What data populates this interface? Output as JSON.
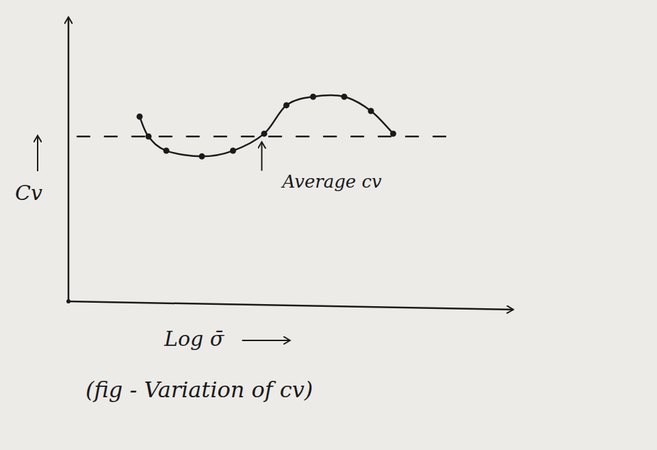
{
  "chart_data": {
    "type": "line",
    "title": "(fig - Variation of cv)",
    "x_label": "Log σ̄",
    "y_label": "Cv",
    "xlim": [
      0,
      10
    ],
    "ylim": [
      0,
      10
    ],
    "tick_labels": false,
    "grid": false,
    "series": [
      {
        "name": null,
        "color": "#1a1a1a",
        "line_style": "solid",
        "marker": "circle",
        "x": [
          1.6,
          1.8,
          2.2,
          3.0,
          3.7,
          4.4,
          4.9,
          5.5,
          6.2,
          6.8,
          7.3
        ],
        "values": [
          6.5,
          5.8,
          5.3,
          5.1,
          5.3,
          5.9,
          6.9,
          7.2,
          7.2,
          6.7,
          5.9
        ]
      },
      {
        "name": "Average cv",
        "color": "#1a1a1a",
        "line_style": "dashed",
        "marker": "none",
        "x": [
          0.2,
          8.8
        ],
        "values": [
          5.8,
          5.8
        ]
      }
    ]
  }
}
